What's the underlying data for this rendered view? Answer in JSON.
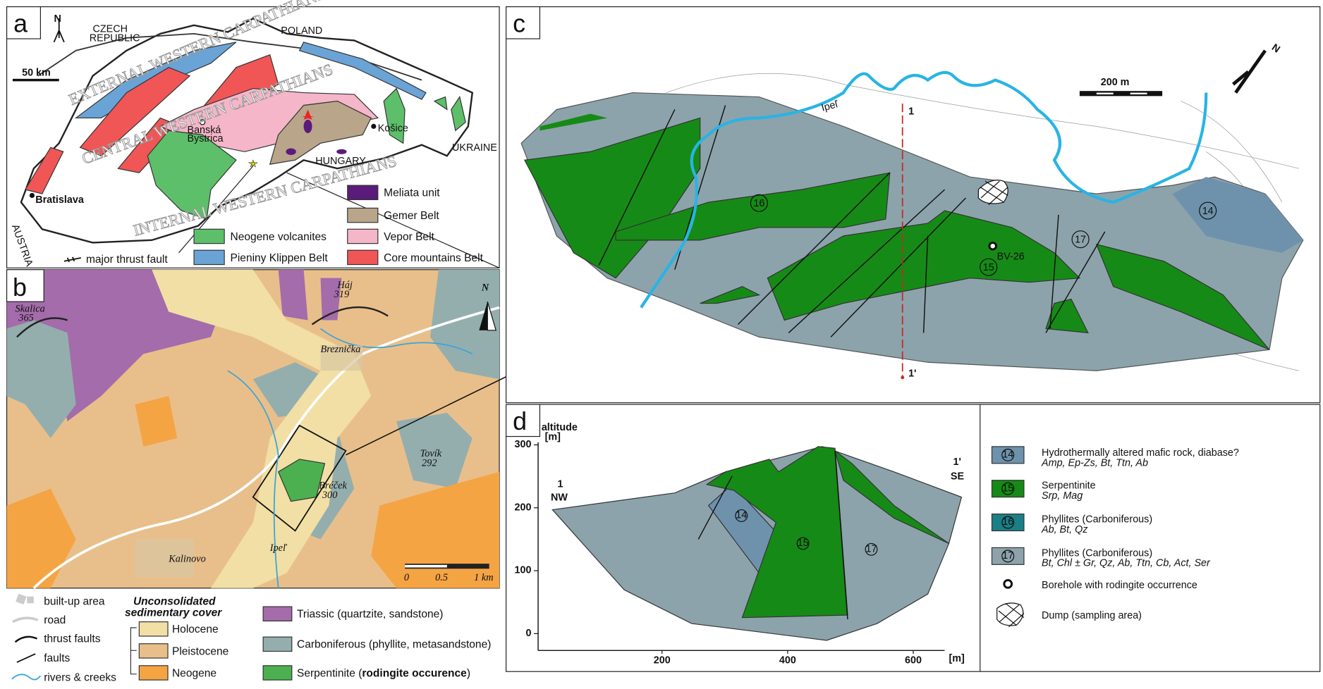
{
  "panel_a": {
    "label": "a",
    "north": "N",
    "scale": "50 km",
    "countries": [
      "CZECH",
      "REPUBLIC",
      "POLAND",
      "UKRAINE",
      "HUNGARY",
      "AUSTRIA"
    ],
    "cities": [
      "Bratislava",
      "Banská",
      "Bystrica",
      "Košice"
    ],
    "regions": [
      "EXTERNAL WESTERN CARPATHIANS",
      "CENTRAL WESTERN CARPATHIANS",
      "INTERNAL WESTERN CARPATHIANS"
    ],
    "legend": {
      "meliata": "Meliata unit",
      "gemer": "Gemer Belt",
      "vepor": "Vepor Belt",
      "core": "Core mountains Belt",
      "neogene": "Neogene volcanites",
      "pieniny": "Pieniny Klippen Belt",
      "thrust": "major thrust fault"
    }
  },
  "panel_b": {
    "label": "b",
    "north": "N",
    "places": {
      "skalica": "Skalica",
      "skalica_alt": "365",
      "haj": "Háj",
      "haj_alt": "319",
      "breznicka": "Breznička",
      "tovik": "Tovík",
      "tovik_alt": "292",
      "brecek": "Bréček",
      "brecek_alt": "300",
      "kalinovo": "Kalinovo",
      "river": "Ipeľ"
    },
    "scale": [
      "0",
      "0.5",
      "1 km"
    ],
    "legend": {
      "builtup": "built-up area",
      "road": "road",
      "thrust": "thrust faults",
      "faults": "faults",
      "rivers": "rivers & creeks",
      "cover": [
        "Unconsolidated",
        "sedimentary cover"
      ],
      "holocene": "Holocene",
      "pleistocene": "Pleistocene",
      "neogene": "Neogene",
      "triassic": "Triassic (quartzite, sandstone)",
      "carboniferous": "Carboniferous (phyllite, metasandstone)",
      "serpentinite": [
        "Serpentinite (",
        "rodingite occurence",
        ")"
      ]
    }
  },
  "panel_c": {
    "label": "c",
    "scale": "200 m",
    "north": "N",
    "profile_start": "1",
    "profile_end": "1'",
    "borehole": "BV-26",
    "river": "Ipeľ",
    "units": [
      "16",
      "15",
      "17",
      "14"
    ]
  },
  "panel_d": {
    "label": "d",
    "y_title": [
      "altitude",
      "[m]"
    ],
    "x_unit": "[m]",
    "start": [
      "1",
      "NW"
    ],
    "end": [
      "1'",
      "SE"
    ],
    "units": [
      "14",
      "15",
      "17"
    ],
    "xlim": [
      0,
      650
    ],
    "ylim": [
      0,
      300
    ],
    "xticks": [
      200,
      400,
      600
    ],
    "yticks": [
      0,
      100,
      200,
      300
    ]
  },
  "legend": [
    {
      "symbol": "14",
      "title": "Hydrothermally altered mafic rock, diabase?",
      "minerals": "Amp, Ep-Zs, Bt, Ttn, Ab"
    },
    {
      "symbol": "15",
      "title": "Serpentinite",
      "minerals": "Srp, Mag"
    },
    {
      "symbol": "16",
      "title": "Phyllites (Carboniferous)",
      "minerals": "Ab, Bt, Qz"
    },
    {
      "symbol": "17",
      "title": "Phyllites (Carboniferous)",
      "minerals": "Bt, Chl ± Gr, Qz, Ab, Ttn, Cb, Act, Ser"
    },
    {
      "title": "Borehole with rodingite occurrence"
    },
    {
      "title": "Dump (sampling area)"
    }
  ]
}
